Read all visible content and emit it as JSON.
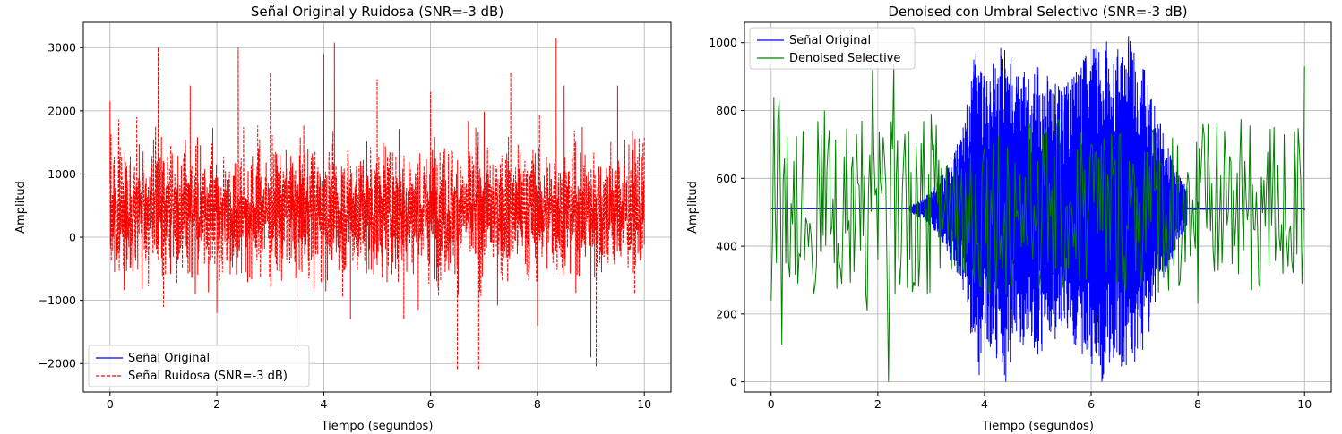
{
  "chart_data": [
    {
      "type": "line",
      "title": "Señal Original y Ruidosa (SNR=-3 dB)",
      "xlabel": "Tiempo (segundos)",
      "ylabel": "Amplitud",
      "xlim": [
        -0.5,
        10.5
      ],
      "ylim": [
        -2450,
        3400
      ],
      "xticks": [
        0,
        2,
        4,
        6,
        8,
        10
      ],
      "xtick_labels": [
        "0",
        "2",
        "4",
        "6",
        "8",
        "10"
      ],
      "yticks": [
        -2000,
        -1000,
        0,
        1000,
        2000,
        3000
      ],
      "ytick_labels": [
        "−2000",
        "−1000",
        "0",
        "1000",
        "2000",
        "3000"
      ],
      "grid": true,
      "legend_position": "lower-left",
      "series": [
        {
          "name": "Señal Original",
          "color": "#0000ff",
          "style": "solid",
          "x": [],
          "y": []
        },
        {
          "name": "Señal Ruidosa (SNR=-3 dB)",
          "color": "#ff0000",
          "style": "dashed",
          "x": [
            0,
            0.5,
            0.9,
            1.0,
            1.5,
            2.0,
            2.4,
            3.0,
            3.5,
            4.0,
            4.2,
            4.5,
            5.0,
            5.5,
            6.0,
            6.5,
            6.9,
            7.5,
            8.0,
            8.35,
            8.5,
            9.0,
            9.1,
            9.5,
            10.0
          ],
          "y": [
            2150,
            1900,
            3000,
            -1100,
            2400,
            -1200,
            3000,
            2600,
            -1700,
            2900,
            3080,
            -1300,
            2500,
            -1300,
            2300,
            -2100,
            -2100,
            2600,
            -1400,
            3150,
            2400,
            -1900,
            -2050,
            2400,
            1600
          ]
        }
      ]
    },
    {
      "type": "line",
      "title": "Denoised con Umbral Selectivo (SNR=-3 dB)",
      "xlabel": "Tiempo (segundos)",
      "ylabel": "Amplitud",
      "xlim": [
        -0.5,
        10.5
      ],
      "ylim": [
        -30,
        1060
      ],
      "xticks": [
        0,
        2,
        4,
        6,
        8,
        10
      ],
      "xtick_labels": [
        "0",
        "2",
        "4",
        "6",
        "8",
        "10"
      ],
      "yticks": [
        0,
        200,
        400,
        600,
        800,
        1000
      ],
      "ytick_labels": [
        "0",
        "200",
        "400",
        "600",
        "800",
        "1000"
      ],
      "grid": true,
      "legend_position": "upper-left",
      "series": [
        {
          "name": "Señal Original",
          "color": "#0000ff",
          "style": "solid",
          "x": [
            0,
            2.5,
            3.0,
            3.3,
            3.6,
            3.8,
            3.9,
            4.0,
            4.4,
            4.6,
            5.0,
            5.5,
            5.9,
            6.2,
            6.5,
            6.7,
            7.0,
            7.3,
            7.6,
            8.0,
            10.0
          ],
          "y": [
            510,
            510,
            560,
            640,
            750,
            950,
            20,
            890,
            0,
            900,
            80,
            870,
            960,
            0,
            980,
            1020,
            920,
            760,
            620,
            530,
            505
          ]
        },
        {
          "name": "Denoised Selective",
          "color": "#008000",
          "style": "solid",
          "x": [
            0,
            0.05,
            0.1,
            0.15,
            0.2,
            0.3,
            0.5,
            0.6,
            0.8,
            1.0,
            1.3,
            1.6,
            1.8,
            1.9,
            2.0,
            2.2,
            2.3,
            2.6,
            3.0,
            3.5,
            4.0,
            4.5,
            5.0,
            5.5,
            6.0,
            6.5,
            7.0,
            7.5,
            8.0,
            8.5,
            9.0,
            9.5,
            10.0
          ],
          "y": [
            240,
            840,
            350,
            830,
            110,
            720,
            290,
            740,
            260,
            800,
            330,
            730,
            210,
            920,
            360,
            0,
            940,
            360,
            790,
            320,
            690,
            280,
            650,
            340,
            700,
            300,
            680,
            380,
            230,
            740,
            270,
            640,
            930
          ]
        }
      ]
    }
  ]
}
